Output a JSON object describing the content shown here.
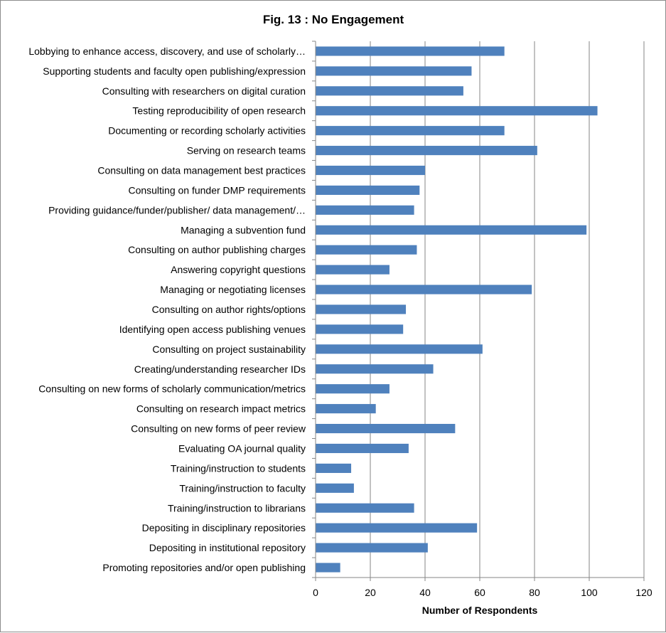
{
  "chart_data": {
    "type": "bar",
    "orientation": "horizontal",
    "title": "Fig. 13 : No Engagement",
    "xlabel": "Number of Respondents",
    "ylabel": "",
    "xlim": [
      0,
      120
    ],
    "xticks": [
      0,
      20,
      40,
      60,
      80,
      100,
      120
    ],
    "grid": "vertical",
    "legend": "none",
    "bar_color": "#4f81bd",
    "categories": [
      "Lobbying to enhance access, discovery, and use of scholarly…",
      "Supporting students and faculty open publishing/expression",
      "Consulting with researchers on digital curation",
      "Testing reproducibility of open research",
      "Documenting or recording scholarly activities",
      "Serving on research teams",
      "Consulting on data management best practices",
      "Consulting on funder DMP requirements",
      "Providing guidance/funder/publisher/ data management/…",
      "Managing a subvention fund",
      "Consulting  on author publishing charges",
      "Answering copyright questions",
      "Managing or negotiating licenses",
      "Consulting on author rights/options",
      "Identifying open access publishing venues",
      "Consulting on project sustainability",
      "Creating/understanding researcher IDs",
      "Consulting on new forms of scholarly communication/metrics",
      "Consulting on research impact metrics",
      "Consulting on new forms of peer review",
      "Evaluating OA journal quality",
      "Training/instruction to students",
      "Training/instruction to faculty",
      "Training/instruction to librarians",
      "Depositing in disciplinary repositories",
      "Depositing in institutional repository",
      "Promoting repositories and/or open publishing"
    ],
    "values": [
      69,
      57,
      54,
      103,
      69,
      81,
      40,
      38,
      36,
      99,
      37,
      27,
      79,
      33,
      32,
      61,
      43,
      27,
      22,
      51,
      34,
      13,
      14,
      36,
      59,
      41,
      9
    ]
  }
}
